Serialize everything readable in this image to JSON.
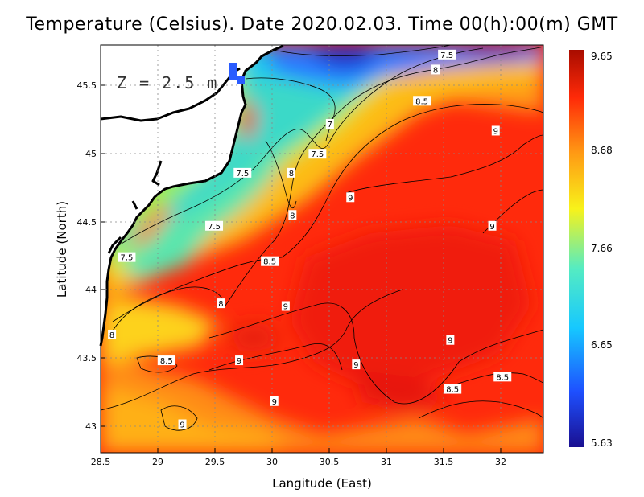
{
  "title": "Temperature (Celsius). Date 2020.02.03. Time 00(h):00(m)  GMT",
  "depth_label": "Z  =  2.5  m",
  "axes": {
    "xlabel": "Langitude (East)",
    "ylabel": "Latitude (North)",
    "xlim": [
      28.5,
      32.4
    ],
    "ylim": [
      42.8,
      45.8
    ],
    "xticks": [
      "28.5",
      "29",
      "29.5",
      "30",
      "30.5",
      "31",
      "31.5",
      "32"
    ],
    "yticks": [
      "43",
      "43.5",
      "44",
      "44.5",
      "45",
      "45.5"
    ],
    "grid": true
  },
  "colorbar": {
    "min": 5.63,
    "max": 9.65,
    "labels": [
      "9.65",
      "8.68",
      "7.66",
      "6.65",
      "5.63"
    ],
    "colors": [
      "#1a0f90",
      "#1e50ff",
      "#16c8ff",
      "#55ecc2",
      "#f8f21a",
      "#ff9a14",
      "#ff2a08",
      "#a80c00"
    ]
  },
  "contour_labels": [
    {
      "text": "7.5",
      "lon": 31.55,
      "lat": 45.73
    },
    {
      "text": "8",
      "lon": 31.45,
      "lat": 45.62
    },
    {
      "text": "8.5",
      "lon": 31.33,
      "lat": 45.39
    },
    {
      "text": "7",
      "lon": 30.52,
      "lat": 45.22
    },
    {
      "text": "9",
      "lon": 31.98,
      "lat": 45.17
    },
    {
      "text": "7.5",
      "lon": 30.41,
      "lat": 45.0
    },
    {
      "text": "7.5",
      "lon": 29.75,
      "lat": 44.86
    },
    {
      "text": "8",
      "lon": 30.18,
      "lat": 44.86
    },
    {
      "text": "9",
      "lon": 30.7,
      "lat": 44.68
    },
    {
      "text": "8",
      "lon": 30.19,
      "lat": 44.55
    },
    {
      "text": "7.5",
      "lon": 29.5,
      "lat": 44.47
    },
    {
      "text": "9",
      "lon": 31.95,
      "lat": 44.47
    },
    {
      "text": "7.5",
      "lon": 28.73,
      "lat": 44.24
    },
    {
      "text": "8.5",
      "lon": 29.99,
      "lat": 44.21
    },
    {
      "text": "8",
      "lon": 29.56,
      "lat": 43.9
    },
    {
      "text": "9",
      "lon": 30.13,
      "lat": 43.88
    },
    {
      "text": "8",
      "lon": 28.6,
      "lat": 43.67
    },
    {
      "text": "9",
      "lon": 31.58,
      "lat": 43.63
    },
    {
      "text": "8.5",
      "lon": 29.08,
      "lat": 43.48
    },
    {
      "text": "9",
      "lon": 29.72,
      "lat": 43.48
    },
    {
      "text": "9",
      "lon": 30.75,
      "lat": 43.45
    },
    {
      "text": "8.5",
      "lon": 32.04,
      "lat": 43.36
    },
    {
      "text": "8.5",
      "lon": 31.6,
      "lat": 43.27
    },
    {
      "text": "9",
      "lon": 30.03,
      "lat": 43.18
    },
    {
      "text": "9",
      "lon": 29.22,
      "lat": 43.01
    }
  ]
}
